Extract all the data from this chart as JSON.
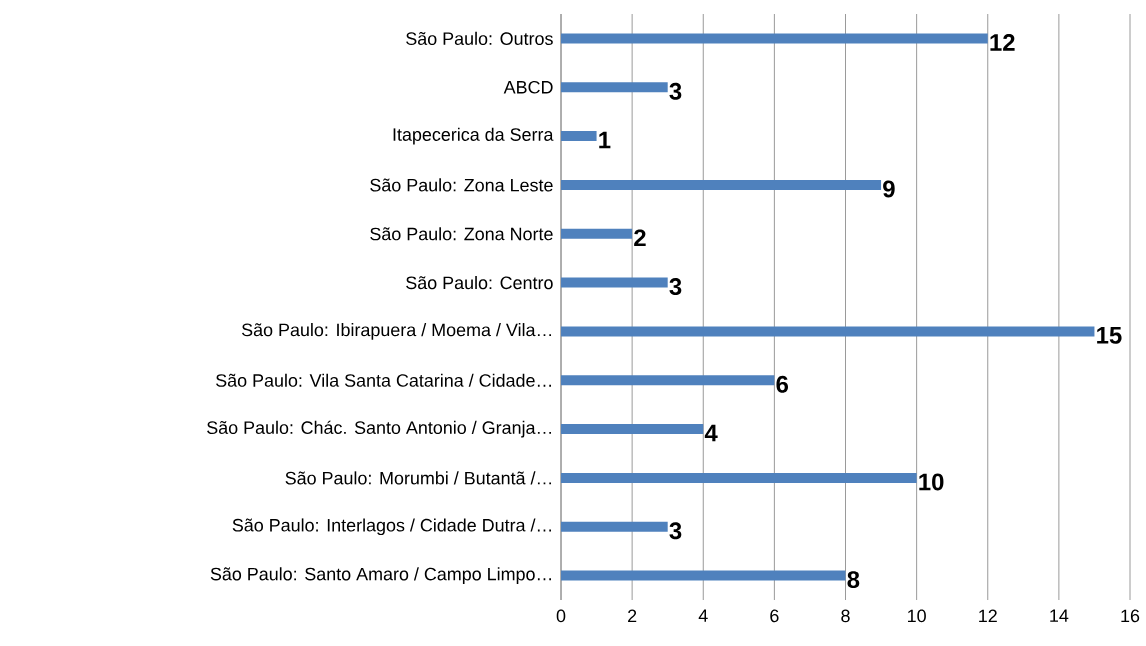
{
  "chart_data": {
    "type": "bar",
    "orientation": "horizontal",
    "categories": [
      "São Paulo: Outros",
      "ABCD",
      "Itapecerica da Serra",
      "São Paulo: Zona Leste",
      "São Paulo: Zona Norte",
      "São Paulo: Centro",
      "São Paulo: Ibirapuera / Moema / Vila…",
      "São Paulo: Vila Santa Catarina / Cidade…",
      "São Paulo: Chác. Santo Antonio / Granja…",
      "São Paulo: Morumbi / Butantã /…",
      "São Paulo: Interlagos / Cidade Dutra /…",
      "São Paulo: Santo Amaro / Campo Limpo…"
    ],
    "values": [
      12,
      3,
      1,
      9,
      2,
      3,
      15,
      6,
      4,
      10,
      3,
      8
    ],
    "color": "#4f81bd",
    "xlim": [
      0,
      16
    ],
    "xticks": [
      0,
      2,
      4,
      6,
      8,
      10,
      12,
      14,
      16
    ],
    "grid": "x",
    "data_labels": true
  }
}
